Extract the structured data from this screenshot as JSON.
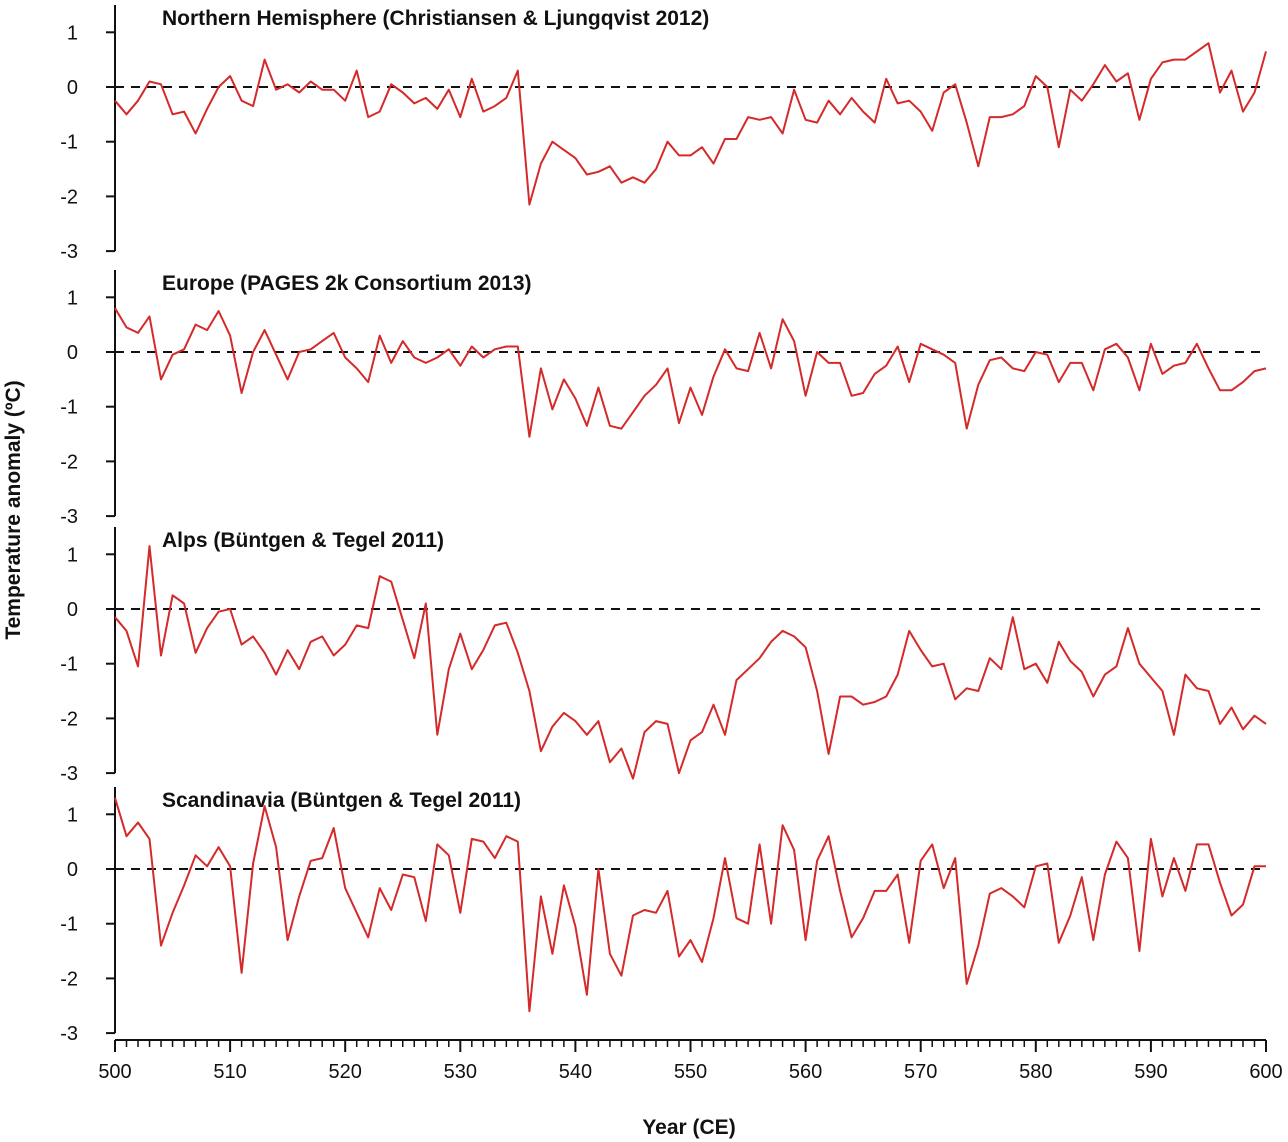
{
  "figure": {
    "xlabel": "Year (CE)",
    "ylabel": "Temperature anomaly (ºC)",
    "xlim": [
      500,
      600
    ],
    "x_ticks": [
      "500",
      "510",
      "520",
      "530",
      "540",
      "550",
      "560",
      "570",
      "580",
      "590",
      "600"
    ]
  },
  "colors": {
    "series": "#d42a2a",
    "axis": "#111111",
    "zero_line": "#111111"
  },
  "chart_data": [
    {
      "type": "line",
      "title": "Northern Hemisphere (Christiansen & Ljungqvist 2012)",
      "xlim": [
        500,
        600
      ],
      "ylim": [
        -3,
        1.5
      ],
      "y_ticks": [
        "1",
        "0",
        "-1",
        "-2",
        "-3"
      ],
      "zero_line": "dashed",
      "x_start": 500,
      "x_step": 1,
      "values": [
        -0.25,
        -0.5,
        -0.25,
        0.1,
        0.05,
        -0.5,
        -0.45,
        -0.85,
        -0.4,
        0.0,
        0.2,
        -0.25,
        -0.35,
        0.5,
        -0.05,
        0.05,
        -0.1,
        0.1,
        -0.05,
        -0.05,
        -0.25,
        0.3,
        -0.55,
        -0.45,
        0.05,
        -0.1,
        -0.3,
        -0.2,
        -0.4,
        -0.05,
        -0.55,
        0.15,
        -0.45,
        -0.35,
        -0.2,
        0.3,
        -2.15,
        -1.4,
        -1.0,
        -1.15,
        -1.3,
        -1.6,
        -1.55,
        -1.45,
        -1.75,
        -1.65,
        -1.75,
        -1.5,
        -1.0,
        -1.25,
        -1.25,
        -1.1,
        -1.4,
        -0.95,
        -0.95,
        -0.55,
        -0.6,
        -0.55,
        -0.85,
        -0.05,
        -0.6,
        -0.65,
        -0.25,
        -0.5,
        -0.2,
        -0.45,
        -0.65,
        0.15,
        -0.3,
        -0.25,
        -0.45,
        -0.8,
        -0.1,
        0.05,
        -0.65,
        -1.45,
        -0.55,
        -0.55,
        -0.5,
        -0.35,
        0.2,
        0.0,
        -1.1,
        -0.05,
        -0.25,
        0.05,
        0.4,
        0.1,
        0.25,
        -0.6,
        0.15,
        0.45,
        0.5,
        0.5,
        0.65,
        0.8,
        -0.1,
        0.3,
        -0.45,
        -0.1,
        0.65
      ]
    },
    {
      "type": "line",
      "title": "Europe (PAGES 2k Consortium 2013)",
      "xlim": [
        500,
        600
      ],
      "ylim": [
        -3,
        1.5
      ],
      "y_ticks": [
        "1",
        "0",
        "-1",
        "-2",
        "-3"
      ],
      "zero_line": "dashed",
      "x_start": 500,
      "x_step": 1,
      "values": [
        0.8,
        0.45,
        0.35,
        0.65,
        -0.5,
        -0.05,
        0.05,
        0.5,
        0.4,
        0.75,
        0.3,
        -0.75,
        0.0,
        0.4,
        -0.05,
        -0.5,
        0.0,
        0.05,
        0.2,
        0.35,
        -0.1,
        -0.3,
        -0.55,
        0.3,
        -0.2,
        0.2,
        -0.1,
        -0.2,
        -0.1,
        0.05,
        -0.25,
        0.1,
        -0.1,
        0.05,
        0.1,
        0.1,
        -1.55,
        -0.3,
        -1.05,
        -0.5,
        -0.85,
        -1.35,
        -0.65,
        -1.35,
        -1.4,
        -1.1,
        -0.8,
        -0.6,
        -0.3,
        -1.3,
        -0.65,
        -1.15,
        -0.45,
        0.05,
        -0.3,
        -0.35,
        0.35,
        -0.3,
        0.6,
        0.2,
        -0.8,
        0.0,
        -0.2,
        -0.2,
        -0.8,
        -0.75,
        -0.4,
        -0.25,
        0.1,
        -0.55,
        0.15,
        0.05,
        -0.05,
        -0.2,
        -1.4,
        -0.6,
        -0.15,
        -0.1,
        -0.3,
        -0.35,
        0.0,
        -0.05,
        -0.55,
        -0.2,
        -0.2,
        -0.7,
        0.05,
        0.15,
        -0.1,
        -0.7,
        0.15,
        -0.4,
        -0.25,
        -0.2,
        0.15,
        -0.3,
        -0.7,
        -0.7,
        -0.55,
        -0.35,
        -0.3
      ]
    },
    {
      "type": "line",
      "title": "Alps (Büntgen & Tegel 2011)",
      "xlim": [
        500,
        600
      ],
      "ylim": [
        -3,
        1.5
      ],
      "y_ticks": [
        "1",
        "0",
        "-1",
        "-2",
        "-3"
      ],
      "zero_line": "dashed",
      "x_start": 500,
      "x_step": 1,
      "values": [
        -0.15,
        -0.4,
        -1.05,
        1.15,
        -0.85,
        0.25,
        0.1,
        -0.8,
        -0.35,
        -0.05,
        0.0,
        -0.65,
        -0.5,
        -0.8,
        -1.2,
        -0.75,
        -1.1,
        -0.6,
        -0.5,
        -0.85,
        -0.65,
        -0.3,
        -0.35,
        0.6,
        0.5,
        -0.2,
        -0.9,
        0.1,
        -2.3,
        -1.1,
        -0.45,
        -1.1,
        -0.75,
        -0.3,
        -0.25,
        -0.8,
        -1.5,
        -2.6,
        -2.15,
        -1.9,
        -2.05,
        -2.3,
        -2.05,
        -2.8,
        -2.55,
        -3.1,
        -2.25,
        -2.05,
        -2.1,
        -3.0,
        -2.4,
        -2.25,
        -1.75,
        -2.3,
        -1.3,
        -1.1,
        -0.9,
        -0.6,
        -0.4,
        -0.5,
        -0.7,
        -1.5,
        -2.65,
        -1.6,
        -1.6,
        -1.75,
        -1.7,
        -1.6,
        -1.2,
        -0.4,
        -0.75,
        -1.05,
        -1.0,
        -1.65,
        -1.45,
        -1.5,
        -0.9,
        -1.1,
        -0.15,
        -1.1,
        -1.0,
        -1.35,
        -0.6,
        -0.95,
        -1.15,
        -1.6,
        -1.2,
        -1.05,
        -0.35,
        -1.0,
        -1.25,
        -1.5,
        -2.3,
        -1.2,
        -1.45,
        -1.5,
        -2.1,
        -1.8,
        -2.2,
        -1.95,
        -2.1
      ]
    },
    {
      "type": "line",
      "title": "Scandinavia (Büntgen & Tegel 2011)",
      "xlim": [
        500,
        600
      ],
      "ylim": [
        -3,
        1.5
      ],
      "y_ticks": [
        "1",
        "0",
        "-1",
        "-2",
        "-3"
      ],
      "zero_line": "dashed",
      "x_start": 500,
      "x_step": 1,
      "values": [
        1.3,
        0.6,
        0.85,
        0.55,
        -1.4,
        -0.8,
        -0.3,
        0.25,
        0.05,
        0.4,
        0.05,
        -1.9,
        0.1,
        1.15,
        0.4,
        -1.3,
        -0.5,
        0.15,
        0.2,
        0.75,
        -0.35,
        -0.8,
        -1.25,
        -0.35,
        -0.75,
        -0.1,
        -0.15,
        -0.95,
        0.45,
        0.25,
        -0.8,
        0.55,
        0.5,
        0.2,
        0.6,
        0.5,
        -2.6,
        -0.5,
        -1.55,
        -0.3,
        -1.05,
        -2.3,
        0.0,
        -1.55,
        -1.95,
        -0.85,
        -0.75,
        -0.8,
        -0.4,
        -1.6,
        -1.3,
        -1.7,
        -0.9,
        0.2,
        -0.9,
        -1.0,
        0.45,
        -1.0,
        0.8,
        0.35,
        -1.3,
        0.15,
        0.6,
        -0.4,
        -1.25,
        -0.9,
        -0.4,
        -0.4,
        -0.1,
        -1.35,
        0.15,
        0.45,
        -0.35,
        0.2,
        -2.1,
        -1.4,
        -0.45,
        -0.35,
        -0.5,
        -0.7,
        0.05,
        0.1,
        -1.35,
        -0.85,
        -0.15,
        -1.3,
        -0.1,
        0.5,
        0.2,
        -1.5,
        0.55,
        -0.5,
        0.2,
        -0.4,
        0.45,
        0.45,
        -0.25,
        -0.85,
        -0.65,
        0.05,
        0.05
      ]
    }
  ]
}
